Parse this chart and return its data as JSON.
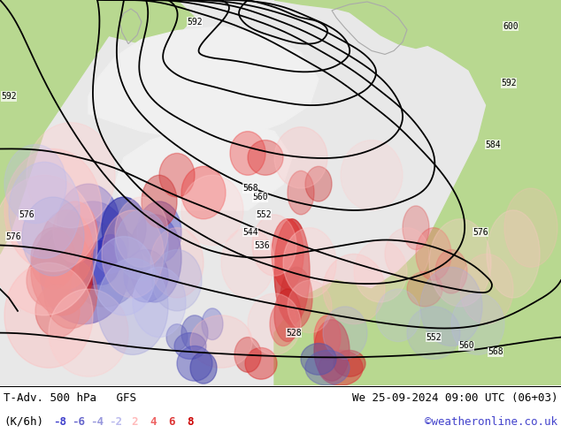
{
  "title_left": "T-Adv. 500 hPa   GFS",
  "title_right": "We 25-09-2024 09:00 UTC (06+03)",
  "unit_label": "(K/6h)",
  "colorbar_values": [
    "-8",
    "-6",
    "-4",
    "-2",
    "2",
    "4",
    "6",
    "8"
  ],
  "colorbar_colors": [
    "#4040cc",
    "#6666cc",
    "#9999dd",
    "#bbbbee",
    "#ffbbbb",
    "#ee6666",
    "#dd3333",
    "#cc0000"
  ],
  "copyright": "©weatheronline.co.uk",
  "bg_color": "#ffffff",
  "land_color": "#c8e8a0",
  "ocean_color": "#e0e0e0",
  "white_area": "#f0f0f0",
  "fig_width": 6.34,
  "fig_height": 4.9,
  "dpi": 100,
  "title_fontsize": 9,
  "legend_fontsize": 9,
  "font_color": "#000000",
  "copyright_color": "#4444cc",
  "contour_labels": [
    [
      30,
      195,
      "576"
    ],
    [
      332,
      60,
      "528"
    ],
    [
      490,
      55,
      "552"
    ],
    [
      527,
      45,
      "560"
    ],
    [
      560,
      38,
      "568"
    ],
    [
      298,
      195,
      "552"
    ],
    [
      283,
      175,
      "544"
    ],
    [
      296,
      160,
      "536"
    ],
    [
      294,
      215,
      "560"
    ],
    [
      283,
      225,
      "568"
    ],
    [
      543,
      175,
      "576"
    ],
    [
      15,
      170,
      "576"
    ],
    [
      10,
      330,
      "592"
    ],
    [
      220,
      415,
      "592"
    ],
    [
      557,
      275,
      "584"
    ],
    [
      575,
      345,
      "592"
    ],
    [
      577,
      410,
      "600"
    ]
  ]
}
